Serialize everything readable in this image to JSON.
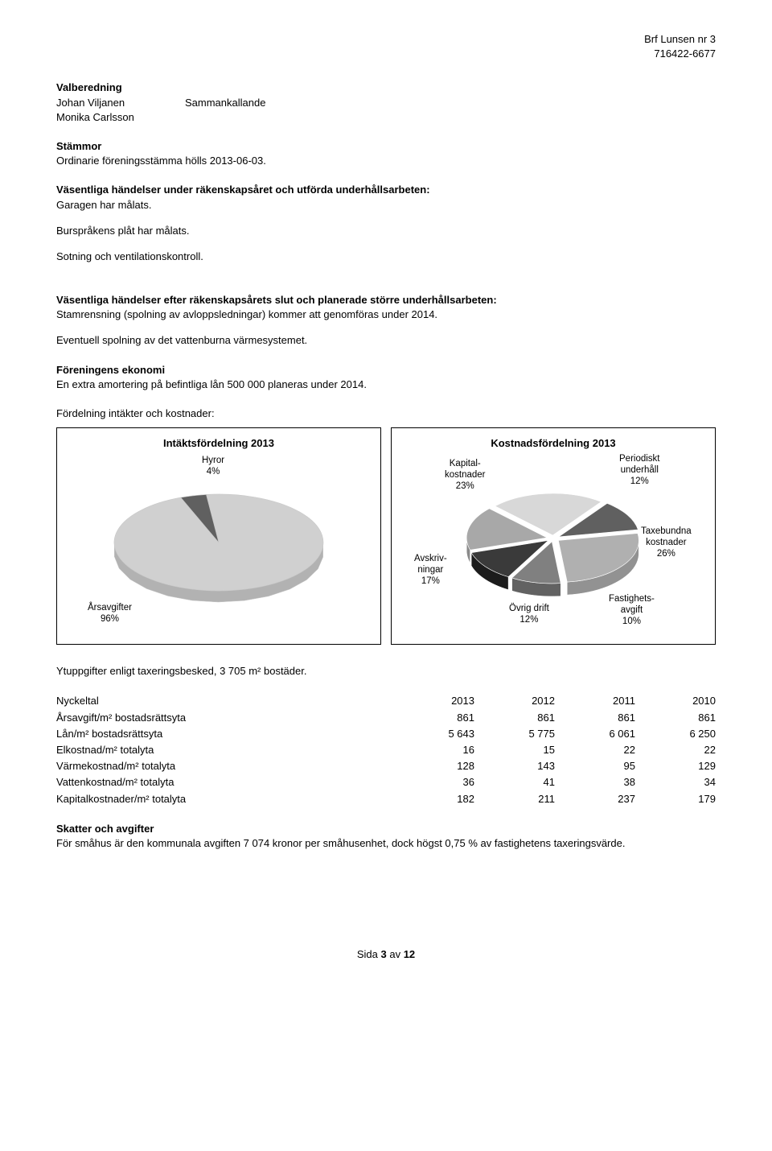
{
  "header": {
    "org_name": "Brf Lunsen nr 3",
    "org_nr": "716422-6677"
  },
  "valberedning": {
    "title": "Valberedning",
    "rows": [
      {
        "name": "Johan Viljanen",
        "role": "Sammankallande"
      },
      {
        "name": "Monika Carlsson",
        "role": ""
      }
    ]
  },
  "stammor": {
    "title": "Stämmor",
    "text": "Ordinarie föreningsstämma hölls 2013-06-03."
  },
  "vasentliga_under": {
    "title": "Väsentliga händelser under räkenskapsåret och utförda underhållsarbeten:",
    "lines": [
      "Garagen har målats.",
      "Burspråkens plåt har målats.",
      "Sotning och ventilationskontroll."
    ]
  },
  "vasentliga_efter": {
    "title": "Väsentliga händelser efter räkenskapsårets slut och planerade större underhållsarbeten:",
    "lines": [
      "Stamrensning (spolning av avloppsledningar) kommer att genomföras under 2014.",
      "Eventuell spolning av det vattenburna värmesystemet."
    ]
  },
  "ekonomi": {
    "title": "Föreningens ekonomi",
    "text": "En extra amortering på befintliga lån 500 000 planeras under 2014."
  },
  "fordelning_header": "Fördelning intäkter och kostnader:",
  "intakt_chart": {
    "title": "Intäktsfördelning 2013",
    "type": "pie",
    "slices": [
      {
        "label": "Årsavgifter",
        "pct": "96%",
        "value": 96,
        "color": "#d0d0d0"
      },
      {
        "label": "Hyror",
        "pct": "4%",
        "value": 4,
        "color": "#606060"
      }
    ],
    "background": "#ffffff",
    "edge_color": "#c8c8c8",
    "label_fontsize": 11.5
  },
  "kostnad_chart": {
    "title": "Kostnadsfördelning 2013",
    "type": "pie",
    "slices": [
      {
        "label": "Kapital-\nkostnader",
        "pct": "23%",
        "value": 23,
        "color": "#d8d8d8"
      },
      {
        "label": "Periodiskt\nunderhåll",
        "pct": "12%",
        "value": 12,
        "color": "#606060"
      },
      {
        "label": "Taxebundna\nkostnader",
        "pct": "26%",
        "value": 26,
        "color": "#b0b0b0"
      },
      {
        "label": "Fastighets-\navgift",
        "pct": "10%",
        "value": 10,
        "color": "#808080"
      },
      {
        "label": "Övrig drift",
        "pct": "12%",
        "value": 12,
        "color": "#3a3a3a"
      },
      {
        "label": "Avskriv-\nningar",
        "pct": "17%",
        "value": 17,
        "color": "#a8a8a8"
      }
    ],
    "background": "#ffffff",
    "edge_color": "#ffffff",
    "label_fontsize": 11.5,
    "exploded": true
  },
  "ytuppgifter": "Ytuppgifter enligt taxeringsbesked, 3 705 m² bostäder.",
  "nyckeltal": {
    "header": [
      "Nyckeltal",
      "2013",
      "2012",
      "2011",
      "2010"
    ],
    "rows": [
      {
        "label": "Årsavgift/m² bostadsrättsyta",
        "v": [
          "861",
          "861",
          "861",
          "861"
        ]
      },
      {
        "label": "Lån/m² bostadsrättsyta",
        "v": [
          "5 643",
          "5 775",
          "6 061",
          "6 250"
        ]
      },
      {
        "label": "Elkostnad/m² totalyta",
        "v": [
          "16",
          "15",
          "22",
          "22"
        ]
      },
      {
        "label": "Värmekostnad/m² totalyta",
        "v": [
          "128",
          "143",
          "95",
          "129"
        ]
      },
      {
        "label": "Vattenkostnad/m² totalyta",
        "v": [
          "36",
          "41",
          "38",
          "34"
        ]
      },
      {
        "label": "Kapitalkostnader/m² totalyta",
        "v": [
          "182",
          "211",
          "237",
          "179"
        ]
      }
    ]
  },
  "skatter": {
    "title": "Skatter och avgifter",
    "text": "För småhus är den kommunala avgiften 7 074 kronor per småhusenhet, dock högst 0,75 % av fastighetens taxeringsvärde."
  },
  "footer": {
    "page_label": "Sida",
    "page": "3",
    "sep": "av",
    "total": "12"
  }
}
